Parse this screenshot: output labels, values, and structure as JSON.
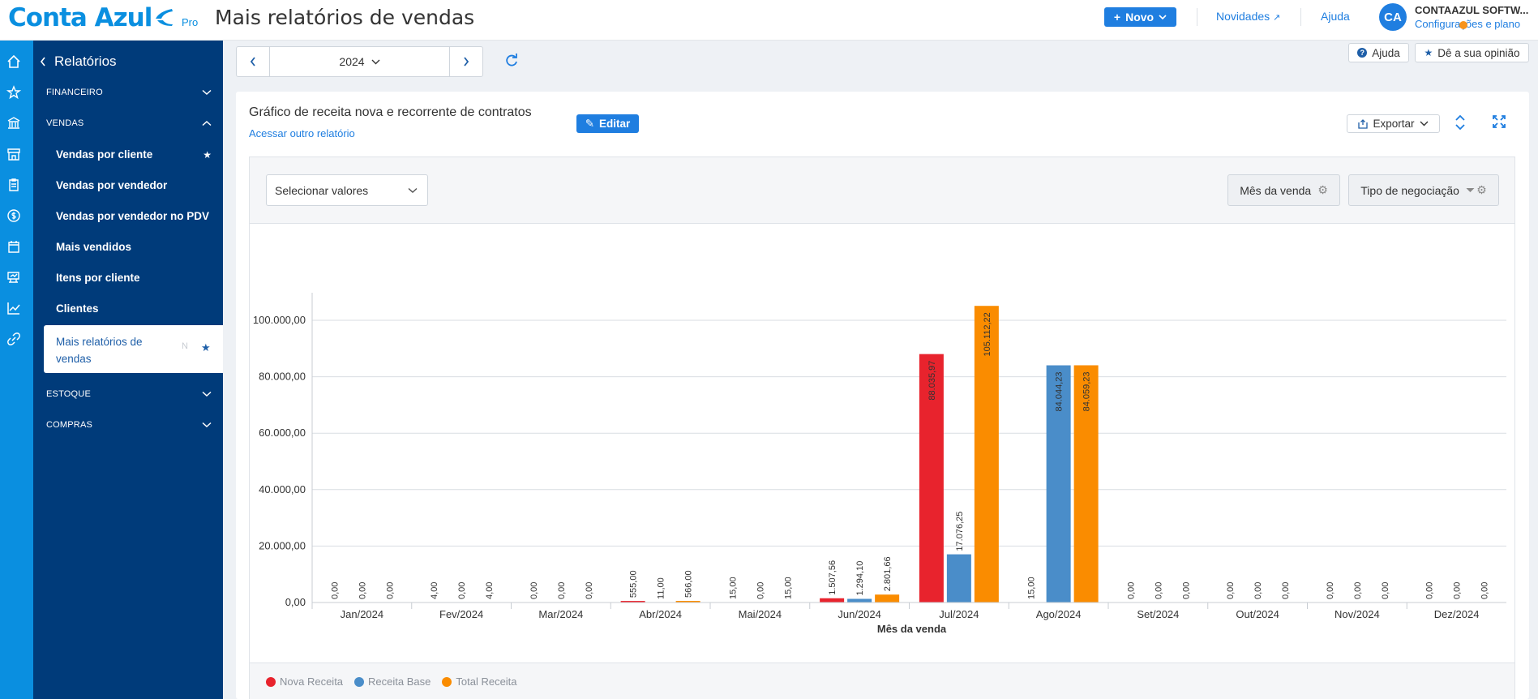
{
  "header": {
    "logo_text": "Conta Azul",
    "logo_tier": "Pro",
    "page_title": "Mais relatórios de vendas",
    "novo_label": "Novo",
    "novidades_label": "Novidades",
    "ajuda_label": "Ajuda",
    "avatar_initials": "CA",
    "company_name": "CONTAAZUL SOFTW...",
    "company_link": "Configurações e plano"
  },
  "rail_icons": [
    "home-icon",
    "star-icon",
    "bank-icon",
    "store-icon",
    "clipboard-icon",
    "money-icon",
    "calendar-icon",
    "cart-icon",
    "chart-icon",
    "link-icon"
  ],
  "sidebar": {
    "title": "Relatórios",
    "sections": {
      "financeiro": "FINANCEIRO",
      "vendas": "VENDAS",
      "estoque": "ESTOQUE",
      "compras": "COMPRAS"
    },
    "items": [
      {
        "label": "Vendas por cliente",
        "starred": true
      },
      {
        "label": "Vendas por vendedor",
        "starred": false
      },
      {
        "label": "Vendas por vendedor no PDV",
        "starred": false
      },
      {
        "label": "Mais vendidos",
        "starred": false
      },
      {
        "label": "Itens por cliente",
        "starred": false
      },
      {
        "label": "Clientes",
        "starred": false
      }
    ],
    "active_item": {
      "label": "Mais relatórios de vendas",
      "tag": "N"
    }
  },
  "toolbar": {
    "year": "2024",
    "ajuda_label": "Ajuda",
    "opinion_label": "Dê a sua opinião"
  },
  "card": {
    "title": "Gráfico de receita nova e recorrente de contratos",
    "other_report_link": "Acessar outro relatório",
    "edit_label": "Editar",
    "export_label": "Exportar",
    "select_placeholder": "Selecionar valores",
    "pill_month": "Mês da venda",
    "pill_type": "Tipo de negociação"
  },
  "colors": {
    "nova": "#e8232d",
    "base": "#4a8dc9",
    "total": "#fa8c00",
    "brand": "#0a8fe0",
    "sidebar": "#003b7a"
  },
  "chart_data": {
    "type": "bar",
    "xlabel": "Mês da venda",
    "ylabel": "",
    "ylim": [
      0,
      110000
    ],
    "yticks": [
      "0,00",
      "20.000,00",
      "40.000,00",
      "60.000,00",
      "80.000,00",
      "100.000,00"
    ],
    "categories": [
      "Jan/2024",
      "Fev/2024",
      "Mar/2024",
      "Abr/2024",
      "Mai/2024",
      "Jun/2024",
      "Jul/2024",
      "Ago/2024",
      "Set/2024",
      "Out/2024",
      "Nov/2024",
      "Dez/2024"
    ],
    "series": [
      {
        "name": "Nova Receita",
        "color": "#e8232d",
        "values": [
          0,
          4,
          0,
          555,
          15,
          1507.56,
          88035.97,
          15,
          0,
          0,
          0,
          0
        ],
        "labels": [
          "0,00",
          "4,00",
          "0,00",
          "555,00",
          "15,00",
          "1.507,56",
          "88.035,97",
          "15,00",
          "0,00",
          "0,00",
          "0,00",
          "0,00"
        ]
      },
      {
        "name": "Receita Base",
        "color": "#4a8dc9",
        "values": [
          0,
          0,
          0,
          11,
          0,
          1294.1,
          17076.25,
          84044.23,
          0,
          0,
          0,
          0
        ],
        "labels": [
          "0,00",
          "0,00",
          "0,00",
          "11,00",
          "0,00",
          "1.294,10",
          "17.076,25",
          "84.044,23",
          "0,00",
          "0,00",
          "0,00",
          "0,00"
        ]
      },
      {
        "name": "Total Receita",
        "color": "#fa8c00",
        "values": [
          0,
          4,
          0,
          566,
          15,
          2801.66,
          105112.22,
          84059.23,
          0,
          0,
          0,
          0
        ],
        "labels": [
          "0,00",
          "4,00",
          "0,00",
          "566,00",
          "15,00",
          "2.801,66",
          "105.112,22",
          "84.059,23",
          "0,00",
          "0,00",
          "0,00",
          "0,00"
        ]
      }
    ],
    "legend_position": "bottom-left",
    "grid": true
  }
}
